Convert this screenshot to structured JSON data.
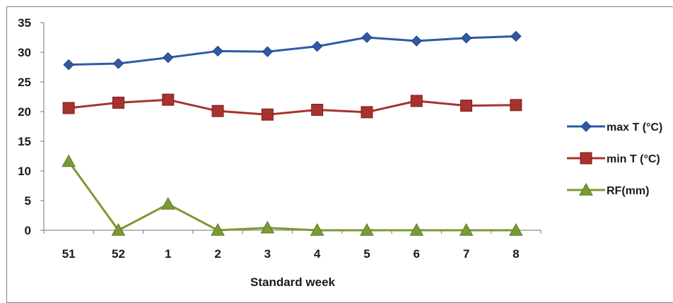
{
  "chart_data": {
    "type": "line",
    "x": [
      "51",
      "52",
      "1",
      "2",
      "3",
      "4",
      "5",
      "6",
      "7",
      "8"
    ],
    "xlabel": "Standard week",
    "ylabel": "",
    "ylim": [
      0,
      35
    ],
    "yticks": [
      0,
      5,
      10,
      15,
      20,
      25,
      30,
      35
    ],
    "grid": false,
    "legend_position": "right",
    "series": [
      {
        "name": "max T (°C)",
        "color": "#2e5aa8",
        "marker": "diamond",
        "values": [
          27.9,
          28.1,
          29.1,
          30.2,
          30.1,
          31.0,
          32.5,
          31.9,
          32.4,
          32.7
        ]
      },
      {
        "name": "min T (°C)",
        "color": "#a8322e",
        "marker": "square",
        "values": [
          20.6,
          21.5,
          22.0,
          20.1,
          19.5,
          20.3,
          19.9,
          21.8,
          21.0,
          21.1
        ]
      },
      {
        "name": "RF(mm)",
        "color": "#7a9a35",
        "marker": "triangle",
        "values": [
          11.6,
          0.0,
          4.4,
          0.0,
          0.4,
          0.0,
          0.0,
          0.0,
          0.0,
          0.0
        ]
      }
    ]
  }
}
